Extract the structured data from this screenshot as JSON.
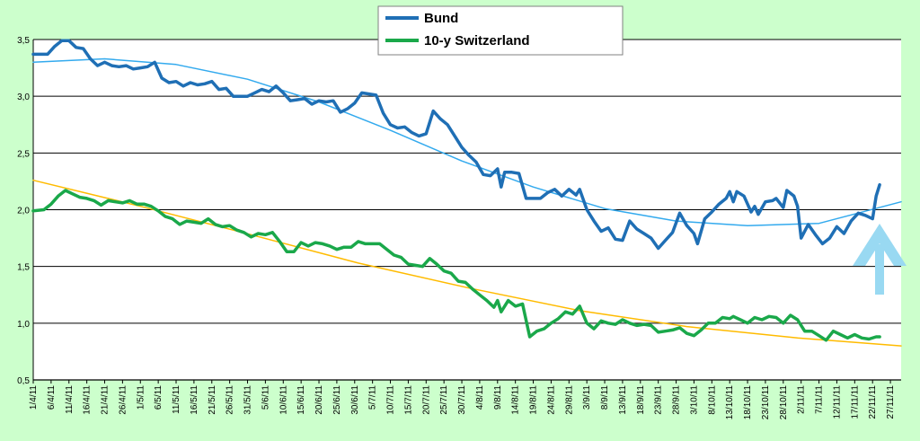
{
  "chart_data": {
    "type": "line",
    "title": "",
    "xlabel": "",
    "ylabel": "",
    "ylim": [
      0.5,
      3.5
    ],
    "y_ticks": [
      "0,5",
      "1,0",
      "1,5",
      "2,0",
      "2,5",
      "3,0",
      "3,5"
    ],
    "grid": "horizontal",
    "legend_position": "top-center",
    "x_dates": [
      "2011-04-01",
      "2011-11-30"
    ],
    "x_tick_labels": [
      "1/4/11",
      "6/4/11",
      "11/4/11",
      "16/4/11",
      "21/4/11",
      "26/4/11",
      "1/5/11",
      "6/5/11",
      "11/5/11",
      "16/5/11",
      "21/5/11",
      "26/5/11",
      "31/5/11",
      "5/6/11",
      "10/6/11",
      "15/6/11",
      "20/6/11",
      "25/6/11",
      "30/6/11",
      "5/7/11",
      "10/7/11",
      "15/7/11",
      "20/7/11",
      "25/7/11",
      "30/7/11",
      "4/8/11",
      "9/8/11",
      "14/8/11",
      "19/8/11",
      "24/8/11",
      "29/8/11",
      "3/9/11",
      "8/9/11",
      "13/9/11",
      "18/9/11",
      "23/9/11",
      "28/9/11",
      "3/10/11",
      "8/10/11",
      "13/10/11",
      "18/10/11",
      "23/10/11",
      "28/10/11",
      "2/11/11",
      "7/11/11",
      "12/11/11",
      "17/11/11",
      "22/11/11",
      "27/11/11"
    ],
    "series": [
      {
        "name": "Bund",
        "color": "#1f6fb5",
        "points": [
          [
            "2011-04-01",
            3.37
          ],
          [
            "2011-04-05",
            3.37
          ],
          [
            "2011-04-07",
            3.44
          ],
          [
            "2011-04-09",
            3.49
          ],
          [
            "2011-04-11",
            3.49
          ],
          [
            "2011-04-13",
            3.43
          ],
          [
            "2011-04-15",
            3.42
          ],
          [
            "2011-04-17",
            3.33
          ],
          [
            "2011-04-19",
            3.27
          ],
          [
            "2011-04-21",
            3.3
          ],
          [
            "2011-04-23",
            3.27
          ],
          [
            "2011-04-25",
            3.26
          ],
          [
            "2011-04-27",
            3.27
          ],
          [
            "2011-04-29",
            3.24
          ],
          [
            "2011-05-01",
            3.25
          ],
          [
            "2011-05-03",
            3.26
          ],
          [
            "2011-05-05",
            3.3
          ],
          [
            "2011-05-07",
            3.16
          ],
          [
            "2011-05-09",
            3.12
          ],
          [
            "2011-05-11",
            3.13
          ],
          [
            "2011-05-13",
            3.09
          ],
          [
            "2011-05-15",
            3.12
          ],
          [
            "2011-05-17",
            3.1
          ],
          [
            "2011-05-19",
            3.11
          ],
          [
            "2011-05-21",
            3.13
          ],
          [
            "2011-05-23",
            3.06
          ],
          [
            "2011-05-25",
            3.07
          ],
          [
            "2011-05-27",
            3.0
          ],
          [
            "2011-05-29",
            3.0
          ],
          [
            "2011-05-31",
            3.0
          ],
          [
            "2011-06-02",
            3.03
          ],
          [
            "2011-06-04",
            3.06
          ],
          [
            "2011-06-06",
            3.04
          ],
          [
            "2011-06-08",
            3.09
          ],
          [
            "2011-06-10",
            3.03
          ],
          [
            "2011-06-12",
            2.96
          ],
          [
            "2011-06-14",
            2.97
          ],
          [
            "2011-06-16",
            2.98
          ],
          [
            "2011-06-18",
            2.93
          ],
          [
            "2011-06-20",
            2.96
          ],
          [
            "2011-06-22",
            2.95
          ],
          [
            "2011-06-24",
            2.96
          ],
          [
            "2011-06-26",
            2.86
          ],
          [
            "2011-06-28",
            2.89
          ],
          [
            "2011-06-30",
            2.94
          ],
          [
            "2011-07-02",
            3.03
          ],
          [
            "2011-07-04",
            3.02
          ],
          [
            "2011-07-06",
            3.01
          ],
          [
            "2011-07-08",
            2.85
          ],
          [
            "2011-07-10",
            2.75
          ],
          [
            "2011-07-12",
            2.72
          ],
          [
            "2011-07-14",
            2.73
          ],
          [
            "2011-07-16",
            2.68
          ],
          [
            "2011-07-18",
            2.65
          ],
          [
            "2011-07-20",
            2.67
          ],
          [
            "2011-07-22",
            2.87
          ],
          [
            "2011-07-24",
            2.8
          ],
          [
            "2011-07-26",
            2.75
          ],
          [
            "2011-07-28",
            2.65
          ],
          [
            "2011-07-30",
            2.55
          ],
          [
            "2011-08-01",
            2.48
          ],
          [
            "2011-08-03",
            2.42
          ],
          [
            "2011-08-05",
            2.31
          ],
          [
            "2011-08-07",
            2.3
          ],
          [
            "2011-08-09",
            2.36
          ],
          [
            "2011-08-10",
            2.2
          ],
          [
            "2011-08-11",
            2.33
          ],
          [
            "2011-08-13",
            2.33
          ],
          [
            "2011-08-15",
            2.32
          ],
          [
            "2011-08-17",
            2.1
          ],
          [
            "2011-08-19",
            2.1
          ],
          [
            "2011-08-21",
            2.1
          ],
          [
            "2011-08-23",
            2.15
          ],
          [
            "2011-08-25",
            2.18
          ],
          [
            "2011-08-27",
            2.12
          ],
          [
            "2011-08-29",
            2.18
          ],
          [
            "2011-08-31",
            2.13
          ],
          [
            "2011-09-01",
            2.18
          ],
          [
            "2011-09-03",
            2.0
          ],
          [
            "2011-09-05",
            1.9
          ],
          [
            "2011-09-07",
            1.81
          ],
          [
            "2011-09-09",
            1.84
          ],
          [
            "2011-09-11",
            1.74
          ],
          [
            "2011-09-13",
            1.73
          ],
          [
            "2011-09-15",
            1.9
          ],
          [
            "2011-09-17",
            1.83
          ],
          [
            "2011-09-19",
            1.79
          ],
          [
            "2011-09-21",
            1.75
          ],
          [
            "2011-09-23",
            1.66
          ],
          [
            "2011-09-25",
            1.73
          ],
          [
            "2011-09-27",
            1.8
          ],
          [
            "2011-09-29",
            1.97
          ],
          [
            "2011-10-01",
            1.86
          ],
          [
            "2011-10-03",
            1.79
          ],
          [
            "2011-10-04",
            1.7
          ],
          [
            "2011-10-06",
            1.92
          ],
          [
            "2011-10-08",
            1.98
          ],
          [
            "2011-10-10",
            2.05
          ],
          [
            "2011-10-12",
            2.1
          ],
          [
            "2011-10-13",
            2.16
          ],
          [
            "2011-10-14",
            2.07
          ],
          [
            "2011-10-15",
            2.16
          ],
          [
            "2011-10-17",
            2.12
          ],
          [
            "2011-10-19",
            1.98
          ],
          [
            "2011-10-20",
            2.03
          ],
          [
            "2011-10-21",
            1.96
          ],
          [
            "2011-10-23",
            2.07
          ],
          [
            "2011-10-25",
            2.08
          ],
          [
            "2011-10-26",
            2.1
          ],
          [
            "2011-10-28",
            2.02
          ],
          [
            "2011-10-29",
            2.17
          ],
          [
            "2011-10-31",
            2.12
          ],
          [
            "2011-11-01",
            2.03
          ],
          [
            "2011-11-02",
            1.75
          ],
          [
            "2011-11-04",
            1.87
          ],
          [
            "2011-11-06",
            1.78
          ],
          [
            "2011-11-08",
            1.7
          ],
          [
            "2011-11-10",
            1.75
          ],
          [
            "2011-11-12",
            1.85
          ],
          [
            "2011-11-14",
            1.79
          ],
          [
            "2011-11-16",
            1.9
          ],
          [
            "2011-11-18",
            1.97
          ],
          [
            "2011-11-20",
            1.95
          ],
          [
            "2011-11-22",
            1.92
          ],
          [
            "2011-11-23",
            2.12
          ],
          [
            "2011-11-24",
            2.22
          ]
        ]
      },
      {
        "name": "10-y Switzerland",
        "color": "#1aa84a",
        "points": [
          [
            "2011-04-01",
            1.99
          ],
          [
            "2011-04-04",
            2.0
          ],
          [
            "2011-04-06",
            2.05
          ],
          [
            "2011-04-08",
            2.12
          ],
          [
            "2011-04-10",
            2.17
          ],
          [
            "2011-04-12",
            2.14
          ],
          [
            "2011-04-14",
            2.11
          ],
          [
            "2011-04-16",
            2.1
          ],
          [
            "2011-04-18",
            2.08
          ],
          [
            "2011-04-20",
            2.04
          ],
          [
            "2011-04-22",
            2.08
          ],
          [
            "2011-04-24",
            2.07
          ],
          [
            "2011-04-26",
            2.06
          ],
          [
            "2011-04-28",
            2.08
          ],
          [
            "2011-04-30",
            2.05
          ],
          [
            "2011-05-02",
            2.05
          ],
          [
            "2011-05-04",
            2.03
          ],
          [
            "2011-05-06",
            1.99
          ],
          [
            "2011-05-08",
            1.94
          ],
          [
            "2011-05-10",
            1.92
          ],
          [
            "2011-05-12",
            1.87
          ],
          [
            "2011-05-14",
            1.9
          ],
          [
            "2011-05-16",
            1.89
          ],
          [
            "2011-05-18",
            1.88
          ],
          [
            "2011-05-20",
            1.92
          ],
          [
            "2011-05-22",
            1.87
          ],
          [
            "2011-05-24",
            1.85
          ],
          [
            "2011-05-26",
            1.86
          ],
          [
            "2011-05-28",
            1.82
          ],
          [
            "2011-05-30",
            1.8
          ],
          [
            "2011-06-01",
            1.76
          ],
          [
            "2011-06-03",
            1.79
          ],
          [
            "2011-06-05",
            1.78
          ],
          [
            "2011-06-07",
            1.8
          ],
          [
            "2011-06-09",
            1.72
          ],
          [
            "2011-06-11",
            1.63
          ],
          [
            "2011-06-13",
            1.63
          ],
          [
            "2011-06-15",
            1.71
          ],
          [
            "2011-06-17",
            1.68
          ],
          [
            "2011-06-19",
            1.71
          ],
          [
            "2011-06-21",
            1.7
          ],
          [
            "2011-06-23",
            1.68
          ],
          [
            "2011-06-25",
            1.65
          ],
          [
            "2011-06-27",
            1.67
          ],
          [
            "2011-06-29",
            1.67
          ],
          [
            "2011-07-01",
            1.72
          ],
          [
            "2011-07-03",
            1.7
          ],
          [
            "2011-07-05",
            1.7
          ],
          [
            "2011-07-07",
            1.7
          ],
          [
            "2011-07-09",
            1.65
          ],
          [
            "2011-07-11",
            1.6
          ],
          [
            "2011-07-13",
            1.58
          ],
          [
            "2011-07-15",
            1.52
          ],
          [
            "2011-07-17",
            1.51
          ],
          [
            "2011-07-19",
            1.5
          ],
          [
            "2011-07-21",
            1.57
          ],
          [
            "2011-07-23",
            1.52
          ],
          [
            "2011-07-25",
            1.46
          ],
          [
            "2011-07-27",
            1.44
          ],
          [
            "2011-07-29",
            1.37
          ],
          [
            "2011-07-31",
            1.36
          ],
          [
            "2011-08-02",
            1.3
          ],
          [
            "2011-08-04",
            1.25
          ],
          [
            "2011-08-06",
            1.2
          ],
          [
            "2011-08-08",
            1.14
          ],
          [
            "2011-08-09",
            1.2
          ],
          [
            "2011-08-10",
            1.1
          ],
          [
            "2011-08-12",
            1.2
          ],
          [
            "2011-08-14",
            1.15
          ],
          [
            "2011-08-16",
            1.17
          ],
          [
            "2011-08-18",
            0.88
          ],
          [
            "2011-08-20",
            0.93
          ],
          [
            "2011-08-22",
            0.95
          ],
          [
            "2011-08-24",
            1.0
          ],
          [
            "2011-08-26",
            1.04
          ],
          [
            "2011-08-28",
            1.1
          ],
          [
            "2011-08-30",
            1.08
          ],
          [
            "2011-09-01",
            1.15
          ],
          [
            "2011-09-03",
            1.0
          ],
          [
            "2011-09-05",
            0.95
          ],
          [
            "2011-09-07",
            1.02
          ],
          [
            "2011-09-09",
            1.0
          ],
          [
            "2011-09-11",
            0.99
          ],
          [
            "2011-09-13",
            1.03
          ],
          [
            "2011-09-15",
            1.0
          ],
          [
            "2011-09-17",
            0.98
          ],
          [
            "2011-09-19",
            0.99
          ],
          [
            "2011-09-21",
            0.98
          ],
          [
            "2011-09-23",
            0.92
          ],
          [
            "2011-09-25",
            0.93
          ],
          [
            "2011-09-27",
            0.94
          ],
          [
            "2011-09-29",
            0.96
          ],
          [
            "2011-10-01",
            0.91
          ],
          [
            "2011-10-03",
            0.89
          ],
          [
            "2011-10-05",
            0.94
          ],
          [
            "2011-10-07",
            1.0
          ],
          [
            "2011-10-09",
            1.0
          ],
          [
            "2011-10-11",
            1.05
          ],
          [
            "2011-10-13",
            1.04
          ],
          [
            "2011-10-14",
            1.06
          ],
          [
            "2011-10-16",
            1.03
          ],
          [
            "2011-10-18",
            1.0
          ],
          [
            "2011-10-20",
            1.05
          ],
          [
            "2011-10-22",
            1.03
          ],
          [
            "2011-10-24",
            1.06
          ],
          [
            "2011-10-26",
            1.05
          ],
          [
            "2011-10-28",
            1.0
          ],
          [
            "2011-10-30",
            1.07
          ],
          [
            "2011-11-01",
            1.03
          ],
          [
            "2011-11-03",
            0.93
          ],
          [
            "2011-11-05",
            0.93
          ],
          [
            "2011-11-07",
            0.89
          ],
          [
            "2011-11-09",
            0.85
          ],
          [
            "2011-11-11",
            0.93
          ],
          [
            "2011-11-13",
            0.9
          ],
          [
            "2011-11-15",
            0.87
          ],
          [
            "2011-11-17",
            0.9
          ],
          [
            "2011-11-19",
            0.87
          ],
          [
            "2011-11-21",
            0.86
          ],
          [
            "2011-11-23",
            0.88
          ],
          [
            "2011-11-24",
            0.88
          ]
        ]
      },
      {
        "color": "#33aaee",
        "points": [
          [
            "2011-04-01",
            3.3
          ],
          [
            "2011-04-21",
            3.33
          ],
          [
            "2011-05-11",
            3.28
          ],
          [
            "2011-05-31",
            3.15
          ],
          [
            "2011-06-20",
            2.95
          ],
          [
            "2011-07-10",
            2.7
          ],
          [
            "2011-07-30",
            2.43
          ],
          [
            "2011-08-19",
            2.2
          ],
          [
            "2011-09-08",
            2.01
          ],
          [
            "2011-09-28",
            1.9
          ],
          [
            "2011-10-18",
            1.86
          ],
          [
            "2011-11-07",
            1.88
          ],
          [
            "2011-11-30",
            2.07
          ]
        ]
      },
      {
        "color": "#ffbb00",
        "points": [
          [
            "2011-04-01",
            2.26
          ],
          [
            "2011-05-01",
            2.03
          ],
          [
            "2011-06-01",
            1.78
          ],
          [
            "2011-07-01",
            1.53
          ],
          [
            "2011-08-01",
            1.31
          ],
          [
            "2011-09-01",
            1.11
          ],
          [
            "2011-10-01",
            0.97
          ],
          [
            "2011-11-01",
            0.87
          ],
          [
            "2011-11-30",
            0.8
          ]
        ]
      }
    ]
  }
}
